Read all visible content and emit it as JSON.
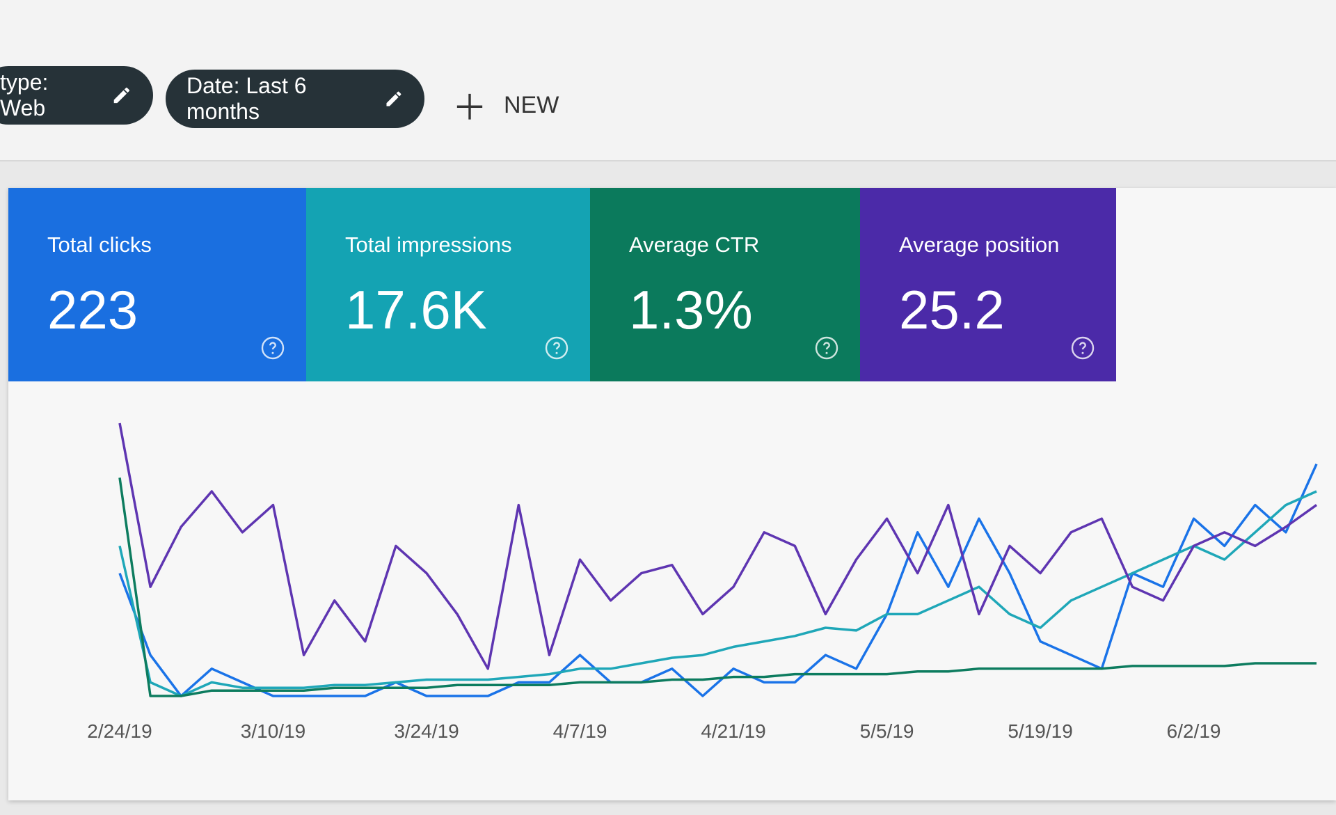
{
  "filters": [
    "type: Web",
    "Date: Last 6 months"
  ],
  "new_button": "NEW",
  "metrics": [
    {
      "label": "Total clicks",
      "value": "223",
      "color": "#1a6fe0"
    },
    {
      "label": "Total impressions",
      "value": "17.6K",
      "color": "#14a3b3"
    },
    {
      "label": "Average CTR",
      "value": "1.3%",
      "color": "#0b7a5c"
    },
    {
      "label": "Average position",
      "value": "25.2",
      "color": "#4b2aa8"
    }
  ],
  "chart_data": {
    "type": "line",
    "categories": [
      "2/24/19",
      null,
      null,
      null,
      null,
      "3/10/19",
      null,
      null,
      null,
      null,
      "3/24/19",
      null,
      null,
      null,
      null,
      "4/7/19",
      null,
      null,
      null,
      null,
      "4/21/19",
      null,
      null,
      null,
      null,
      "5/5/19",
      null,
      null,
      null,
      null,
      "5/19/19",
      null,
      null,
      null,
      null,
      "6/2/19",
      null,
      null,
      null,
      null
    ],
    "series": [
      {
        "name": "Clicks",
        "color": "#1a73e8",
        "values": [
          45,
          15,
          0,
          10,
          5,
          0,
          0,
          0,
          0,
          5,
          0,
          0,
          0,
          5,
          5,
          15,
          5,
          5,
          10,
          0,
          10,
          5,
          5,
          15,
          10,
          30,
          60,
          40,
          65,
          45,
          20,
          15,
          10,
          45,
          40,
          65,
          55,
          70,
          60,
          85
        ]
      },
      {
        "name": "Impressions",
        "color": "#1fa7b8",
        "values": [
          55,
          5,
          0,
          5,
          3,
          3,
          3,
          4,
          4,
          5,
          6,
          6,
          6,
          7,
          8,
          10,
          10,
          12,
          14,
          15,
          18,
          20,
          22,
          25,
          24,
          30,
          30,
          35,
          40,
          30,
          25,
          35,
          40,
          45,
          50,
          55,
          50,
          60,
          70,
          75
        ]
      },
      {
        "name": "CTR",
        "color": "#0d7c5f",
        "values": [
          80,
          0,
          0,
          2,
          2,
          2,
          2,
          3,
          3,
          3,
          3,
          4,
          4,
          4,
          4,
          5,
          5,
          5,
          6,
          6,
          7,
          7,
          8,
          8,
          8,
          8,
          9,
          9,
          10,
          10,
          10,
          10,
          10,
          11,
          11,
          11,
          11,
          12,
          12,
          12
        ]
      },
      {
        "name": "Position",
        "color": "#5e35b1",
        "values": [
          100,
          40,
          62,
          75,
          60,
          70,
          15,
          35,
          20,
          55,
          45,
          30,
          10,
          70,
          15,
          50,
          35,
          45,
          48,
          30,
          40,
          60,
          55,
          30,
          50,
          65,
          45,
          70,
          30,
          55,
          45,
          60,
          65,
          40,
          35,
          55,
          60,
          55,
          62,
          70
        ]
      }
    ]
  }
}
